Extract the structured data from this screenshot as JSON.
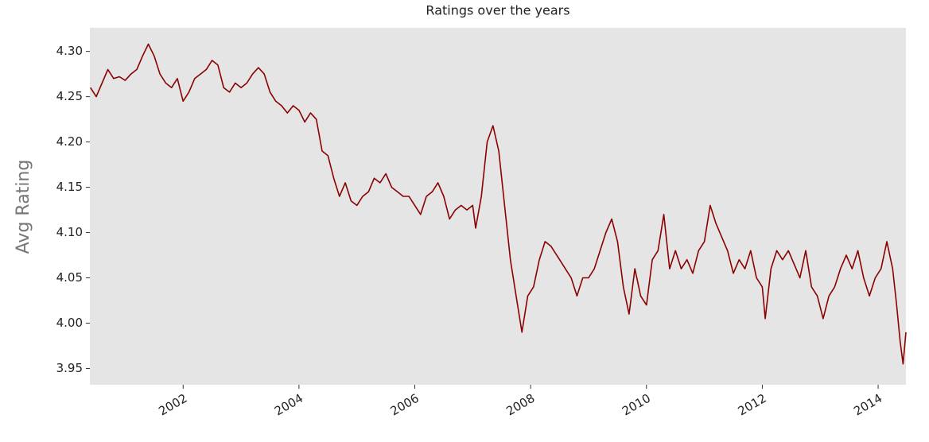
{
  "chart_data": {
    "type": "line",
    "title": "Ratings over the years",
    "ylabel": "Avg Rating",
    "x": [
      2000.4,
      2000.5,
      2000.6,
      2000.7,
      2000.8,
      2000.9,
      2001.0,
      2001.1,
      2001.2,
      2001.3,
      2001.4,
      2001.5,
      2001.6,
      2001.7,
      2001.8,
      2001.9,
      2002.0,
      2002.1,
      2002.2,
      2002.3,
      2002.4,
      2002.5,
      2002.6,
      2002.7,
      2002.8,
      2002.9,
      2003.0,
      2003.1,
      2003.2,
      2003.3,
      2003.4,
      2003.5,
      2003.6,
      2003.7,
      2003.8,
      2003.9,
      2004.0,
      2004.1,
      2004.2,
      2004.3,
      2004.4,
      2004.5,
      2004.6,
      2004.7,
      2004.8,
      2004.9,
      2005.0,
      2005.1,
      2005.2,
      2005.3,
      2005.4,
      2005.5,
      2005.6,
      2005.7,
      2005.8,
      2005.9,
      2006.0,
      2006.1,
      2006.2,
      2006.3,
      2006.4,
      2006.5,
      2006.6,
      2006.7,
      2006.8,
      2006.9,
      2007.0,
      2007.05,
      2007.15,
      2007.25,
      2007.35,
      2007.45,
      2007.55,
      2007.65,
      2007.75,
      2007.85,
      2007.95,
      2008.05,
      2008.15,
      2008.25,
      2008.35,
      2008.5,
      2008.6,
      2008.7,
      2008.8,
      2008.9,
      2009.0,
      2009.1,
      2009.2,
      2009.3,
      2009.4,
      2009.5,
      2009.6,
      2009.7,
      2009.8,
      2009.9,
      2010.0,
      2010.1,
      2010.2,
      2010.3,
      2010.4,
      2010.5,
      2010.6,
      2010.7,
      2010.8,
      2010.9,
      2011.0,
      2011.1,
      2011.2,
      2011.3,
      2011.4,
      2011.5,
      2011.6,
      2011.7,
      2011.8,
      2011.9,
      2012.0,
      2012.05,
      2012.15,
      2012.25,
      2012.35,
      2012.45,
      2012.55,
      2012.65,
      2012.75,
      2012.85,
      2012.95,
      2013.05,
      2013.15,
      2013.25,
      2013.35,
      2013.45,
      2013.55,
      2013.65,
      2013.75,
      2013.85,
      2013.95,
      2014.05,
      2014.15,
      2014.25,
      2014.32,
      2014.38,
      2014.43,
      2014.48
    ],
    "series": [
      {
        "name": "Avg Rating",
        "color": "#8b0000",
        "values": [
          4.26,
          4.25,
          4.265,
          4.28,
          4.27,
          4.272,
          4.268,
          4.275,
          4.28,
          4.295,
          4.308,
          4.295,
          4.275,
          4.265,
          4.26,
          4.27,
          4.245,
          4.255,
          4.27,
          4.275,
          4.28,
          4.29,
          4.285,
          4.26,
          4.255,
          4.265,
          4.26,
          4.265,
          4.275,
          4.282,
          4.275,
          4.255,
          4.245,
          4.24,
          4.232,
          4.24,
          4.235,
          4.222,
          4.232,
          4.225,
          4.19,
          4.185,
          4.16,
          4.14,
          4.155,
          4.135,
          4.13,
          4.14,
          4.145,
          4.16,
          4.155,
          4.165,
          4.15,
          4.145,
          4.14,
          4.14,
          4.13,
          4.12,
          4.14,
          4.145,
          4.155,
          4.14,
          4.115,
          4.125,
          4.13,
          4.125,
          4.13,
          4.105,
          4.14,
          4.2,
          4.218,
          4.19,
          4.13,
          4.07,
          4.03,
          3.99,
          4.03,
          4.04,
          4.07,
          4.09,
          4.085,
          4.07,
          4.06,
          4.05,
          4.03,
          4.05,
          4.05,
          4.06,
          4.08,
          4.1,
          4.115,
          4.09,
          4.04,
          4.01,
          4.06,
          4.03,
          4.02,
          4.07,
          4.08,
          4.12,
          4.06,
          4.08,
          4.06,
          4.07,
          4.055,
          4.08,
          4.09,
          4.13,
          4.11,
          4.095,
          4.08,
          4.055,
          4.07,
          4.06,
          4.08,
          4.05,
          4.04,
          4.005,
          4.06,
          4.08,
          4.07,
          4.08,
          4.065,
          4.05,
          4.08,
          4.04,
          4.03,
          4.005,
          4.03,
          4.04,
          4.06,
          4.075,
          4.06,
          4.08,
          4.05,
          4.03,
          4.05,
          4.06,
          4.09,
          4.06,
          4.02,
          3.98,
          3.955,
          3.99
        ]
      }
    ],
    "xlim": [
      2000.39,
      2014.48
    ],
    "xticks": [
      2002,
      2004,
      2006,
      2008,
      2010,
      2012,
      2014
    ],
    "ylim": [
      3.932,
      4.326
    ],
    "yticks": [
      3.95,
      {
        "value": 4.0,
        "label": "4.00"
      },
      4.05,
      {
        "value": 4.1,
        "label": "4.10"
      },
      4.15,
      {
        "value": 4.2,
        "label": "4.20"
      },
      4.25,
      {
        "value": 4.3,
        "label": "4.30"
      }
    ],
    "grid": false,
    "background": "#e5e5e5"
  }
}
